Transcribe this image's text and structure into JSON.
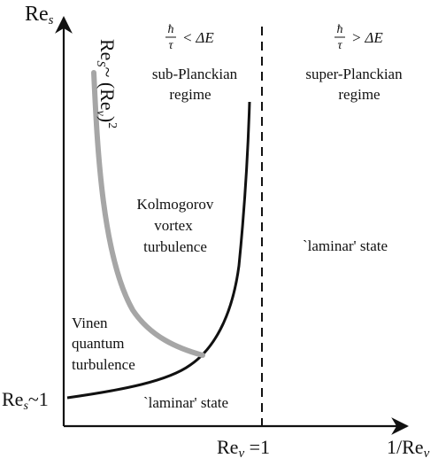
{
  "axes": {
    "y_label_main": "Re",
    "y_label_sub": "s",
    "y_tick_main": "Re",
    "y_tick_sub": "s",
    "y_tick_suffix": "~1",
    "x_tick_main": "Re",
    "x_tick_sub": "ν",
    "x_tick_suffix": " =1",
    "x_label_prefix": "1/Re",
    "x_label_sub": "ν"
  },
  "headers": {
    "left_hbar": "ħ",
    "left_tau": "τ",
    "left_relation": "< ΔE",
    "right_hbar": "ħ",
    "right_tau": "τ",
    "right_relation": "> ΔE"
  },
  "regions": {
    "sub_planckian_line1": "sub-Planckian",
    "sub_planckian_line2": "regime",
    "super_planckian_line1": "super-Planckian",
    "super_planckian_line2": "regime",
    "kolmogorov_line1": "Kolmogorov",
    "kolmogorov_line2": "vortex",
    "kolmogorov_line3": "turbulence",
    "vinen_line1": "Vinen",
    "vinen_line2": "quantum",
    "vinen_line3": "turbulence",
    "laminar_right": "`laminar' state",
    "laminar_bottom": "`laminar' state"
  },
  "curve_label": {
    "prefix": "Re",
    "sub": "S",
    "middle": "~ (Re",
    "sub2": "ν",
    "close": ")",
    "power": "2"
  },
  "colors": {
    "axis": "#111111",
    "black_curve": "#111111",
    "gray_curve": "#a6a6a6",
    "divider": "#111111"
  }
}
